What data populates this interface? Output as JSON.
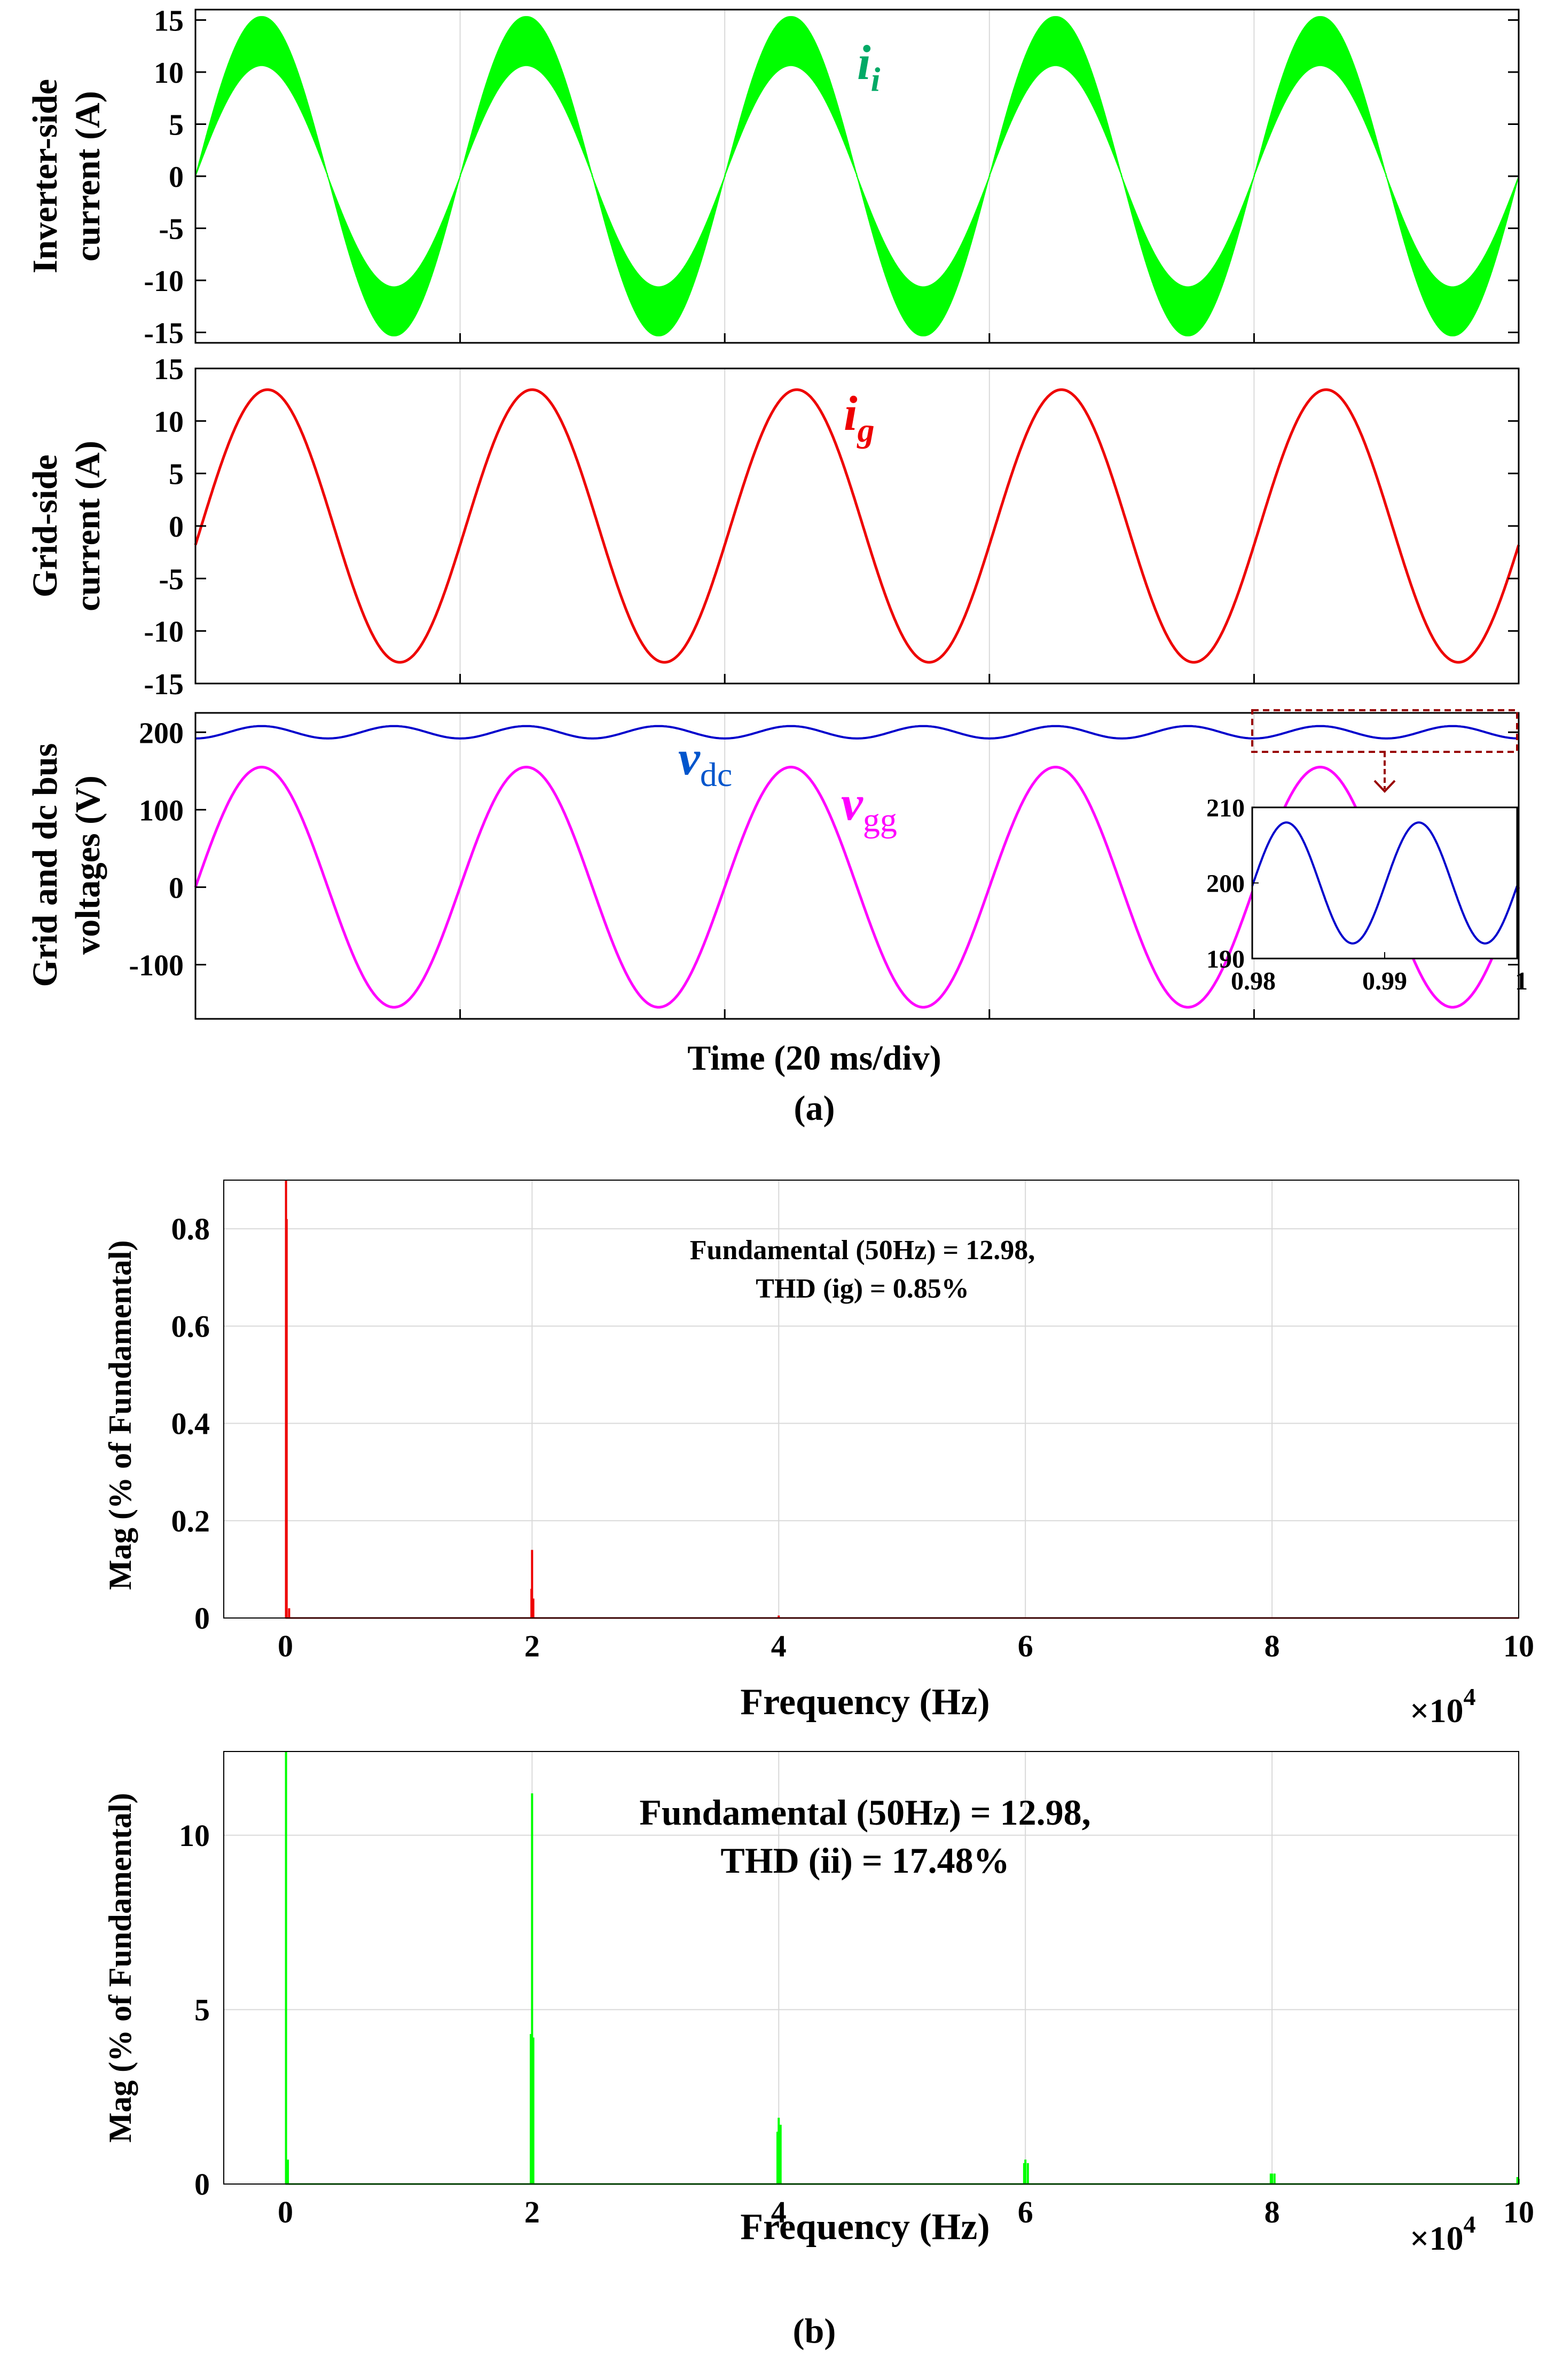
{
  "colors": {
    "inverter_current": "#00ff00",
    "grid_current": "#ee0000",
    "dc_bus_voltage": "#0000cc",
    "grid_voltage": "#ff00ff",
    "zoom_box": "#990000",
    "ii_label": "#00aa66",
    "vdc_label": "#0055cc",
    "spectrum_ig": "#ee0000",
    "spectrum_ii": "#00ff00",
    "grid": "#d9d9d9"
  },
  "panel_a": {
    "caption": "(a)",
    "xlabel": "Time (20 ms/div)",
    "time_window": [
      0,
      0.1
    ]
  },
  "panel_b": {
    "caption": "(b)"
  },
  "chart_data": [
    {
      "id": "inverter-current",
      "type": "line",
      "ylabel": [
        "Inverter-side",
        "current (A)"
      ],
      "yticks": [
        15,
        10,
        5,
        0,
        -5,
        -10,
        -15
      ],
      "ylim": [
        -16,
        16
      ],
      "xlim": [
        0,
        0.1
      ],
      "series": [
        {
          "name": "i",
          "subscript": "i",
          "color_key": "inverter_current",
          "fundamental_amplitude": 12.98,
          "fundamental_hz": 50,
          "ripple_amplitude": 2.4,
          "ripple_hz": 20000,
          "phase_deg": 0
        }
      ]
    },
    {
      "id": "grid-current",
      "type": "line",
      "ylabel": [
        "Grid-side",
        "current (A)"
      ],
      "yticks": [
        15,
        10,
        5,
        0,
        -5,
        -10,
        -15
      ],
      "ylim": [
        -15,
        15
      ],
      "xlim": [
        0,
        0.1
      ],
      "series": [
        {
          "name": "i",
          "subscript": "g",
          "color_key": "grid_current",
          "fundamental_amplitude": 12.98,
          "fundamental_hz": 50,
          "phase_deg": -8
        }
      ]
    },
    {
      "id": "grid-dc-voltages",
      "type": "line",
      "ylabel": [
        "Grid and  dc bus",
        "voltages (V)"
      ],
      "yticks": [
        200,
        100,
        0,
        -100
      ],
      "ylim": [
        -170,
        225
      ],
      "xlim": [
        0,
        0.1
      ],
      "series": [
        {
          "name": "v",
          "subscript": "dc",
          "color_key": "dc_bus_voltage",
          "dc_offset": 200,
          "ripple_amplitude": 8,
          "ripple_hz": 100
        },
        {
          "name": "v",
          "subscript": "gg",
          "color_key": "grid_voltage",
          "fundamental_amplitude": 155,
          "fundamental_hz": 50,
          "phase_deg": 0
        }
      ],
      "inset": {
        "xlim": [
          0.98,
          1
        ],
        "ylim": [
          190,
          210
        ],
        "xticks": [
          "0.98",
          "0.99",
          "1"
        ],
        "yticks": [
          210,
          200,
          190
        ]
      }
    },
    {
      "id": "spectrum-ig",
      "type": "bar",
      "ylabel": "Mag (% of Fundamental)",
      "xlabel": "Frequency (Hz)",
      "x_multiplier": "×10",
      "x_multiplier_exp": "4",
      "xticks": [
        "0",
        "2",
        "4",
        "6",
        "8",
        "10"
      ],
      "xlim": [
        -0.5,
        10
      ],
      "yticks": [
        "0.8",
        "0.6",
        "0.4",
        "0.2",
        "0"
      ],
      "ylim": [
        0,
        0.9
      ],
      "annotation": [
        "Fundamental (50Hz) = 12.98,",
        "THD (ig) = 0.85%"
      ],
      "peaks": [
        {
          "x": 0.005,
          "y": 0.9
        },
        {
          "x": 0.01,
          "y": 0.82
        },
        {
          "x": 0.03,
          "y": 0.02
        },
        {
          "x": 1.995,
          "y": 0.06
        },
        {
          "x": 2.0,
          "y": 0.14
        },
        {
          "x": 2.01,
          "y": 0.04
        },
        {
          "x": 4.0,
          "y": 0.005
        }
      ]
    },
    {
      "id": "spectrum-ii",
      "type": "bar",
      "ylabel": "Mag (% of Fundamental)",
      "xlabel": "Frequency (Hz)",
      "x_multiplier": "×10",
      "x_multiplier_exp": "4",
      "xticks": [
        "0",
        "2",
        "4",
        "6",
        "8",
        "10"
      ],
      "xlim": [
        -0.5,
        10
      ],
      "yticks": [
        "10",
        "5",
        "0"
      ],
      "ylim": [
        0,
        12.4
      ],
      "annotation": [
        "Fundamental (50Hz) = 12.98,",
        "THD (ii) = 17.48%"
      ],
      "peaks": [
        {
          "x": 0.005,
          "y": 12.4
        },
        {
          "x": 0.02,
          "y": 0.7
        },
        {
          "x": 1.99,
          "y": 4.3
        },
        {
          "x": 2.0,
          "y": 11.2
        },
        {
          "x": 2.01,
          "y": 4.2
        },
        {
          "x": 3.99,
          "y": 1.5
        },
        {
          "x": 4.0,
          "y": 1.9
        },
        {
          "x": 4.015,
          "y": 1.7
        },
        {
          "x": 5.99,
          "y": 0.6
        },
        {
          "x": 6.0,
          "y": 0.7
        },
        {
          "x": 6.02,
          "y": 0.6
        },
        {
          "x": 7.99,
          "y": 0.3
        },
        {
          "x": 8.0,
          "y": 0.3
        },
        {
          "x": 8.02,
          "y": 0.3
        },
        {
          "x": 9.99,
          "y": 0.2
        },
        {
          "x": 10.0,
          "y": 0.15
        }
      ]
    }
  ]
}
